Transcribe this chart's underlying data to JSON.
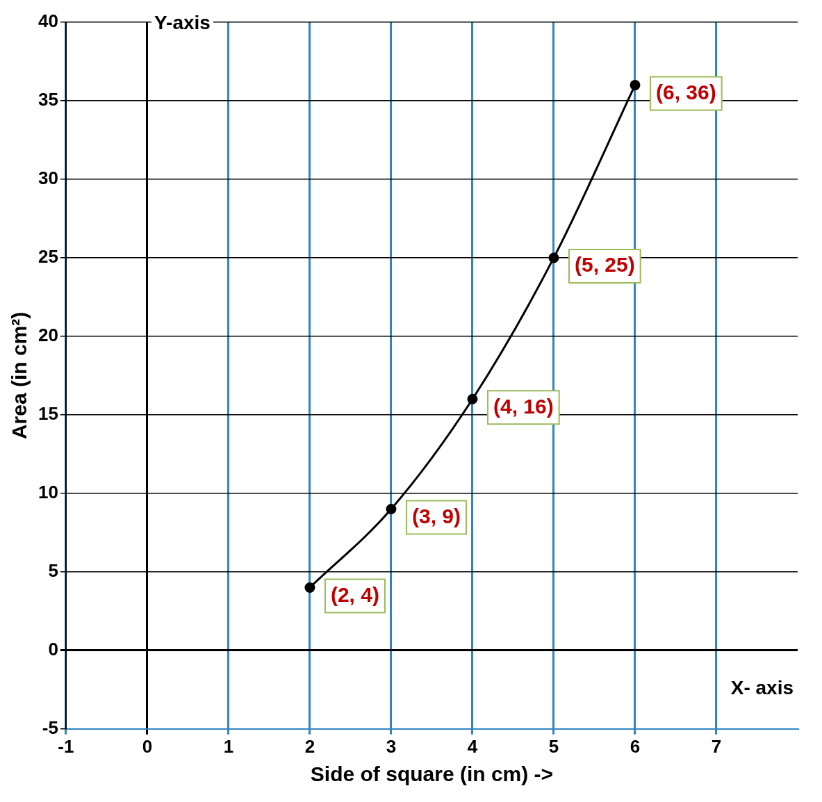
{
  "chart_data": {
    "type": "line",
    "xlabel": "Side of square (in cm) ->",
    "ylabel": "Area (in cm²)",
    "annotations": [
      "Y-axis",
      "X- axis"
    ],
    "series": [
      {
        "color": "#000000",
        "x": [
          2,
          3,
          4,
          5,
          6
        ],
        "values": [
          4,
          9,
          16,
          25,
          36
        ],
        "value_labels": [
          "(2, 4)",
          "(3, 9)",
          "(4, 16)",
          "(5, 25)",
          "(6, 36)"
        ]
      }
    ],
    "xlim": [
      -1,
      8
    ],
    "xticks": [
      -1,
      0,
      1,
      2,
      3,
      4,
      5,
      6,
      7
    ],
    "ylim": [
      -5,
      40
    ],
    "yticks": [
      -5,
      0,
      5,
      10,
      15,
      20,
      25,
      30,
      35,
      40
    ],
    "grid": true,
    "marker": "circle",
    "line_style": "solid",
    "legend": false
  }
}
